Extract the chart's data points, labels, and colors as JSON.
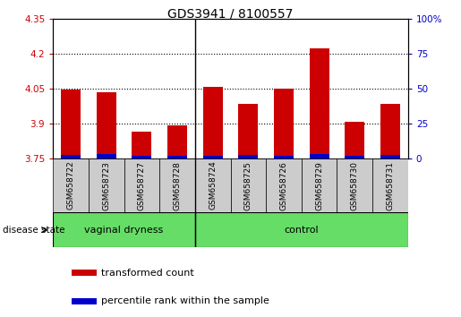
{
  "title": "GDS3941 / 8100557",
  "samples": [
    "GSM658722",
    "GSM658723",
    "GSM658727",
    "GSM658728",
    "GSM658724",
    "GSM658725",
    "GSM658726",
    "GSM658729",
    "GSM658730",
    "GSM658731"
  ],
  "red_values": [
    4.047,
    4.035,
    3.865,
    3.893,
    4.057,
    3.985,
    4.052,
    4.225,
    3.908,
    3.985
  ],
  "blue_values": [
    3.766,
    3.768,
    3.762,
    3.762,
    3.763,
    3.764,
    3.763,
    3.768,
    3.763,
    3.764
  ],
  "base": 3.75,
  "ylim_left": [
    3.75,
    4.35
  ],
  "ylim_right": [
    0,
    100
  ],
  "yticks_left": [
    3.75,
    3.9,
    4.05,
    4.2,
    4.35
  ],
  "yticks_right": [
    0,
    25,
    50,
    75,
    100
  ],
  "ytick_labels_left": [
    "3.75",
    "3.9",
    "4.05",
    "4.2",
    "4.35"
  ],
  "ytick_labels_right": [
    "0",
    "25",
    "50",
    "75",
    "100%"
  ],
  "groups": [
    {
      "label": "vaginal dryness",
      "start": 0,
      "end": 4
    },
    {
      "label": "control",
      "start": 4,
      "end": 10
    }
  ],
  "group_sep": 4,
  "disease_state_label": "disease state",
  "legend": [
    {
      "label": "transformed count",
      "color": "#CC0000"
    },
    {
      "label": "percentile rank within the sample",
      "color": "#0000CC"
    }
  ],
  "bar_width": 0.55,
  "red_color": "#CC0000",
  "blue_color": "#0000CC",
  "left_axis_color": "#CC0000",
  "right_axis_color": "#0000CC",
  "grid_color": "black",
  "background_color": "#ffffff",
  "plot_bg_color": "#ffffff",
  "group_color": "#66DD66",
  "label_bg_color": "#cccccc"
}
